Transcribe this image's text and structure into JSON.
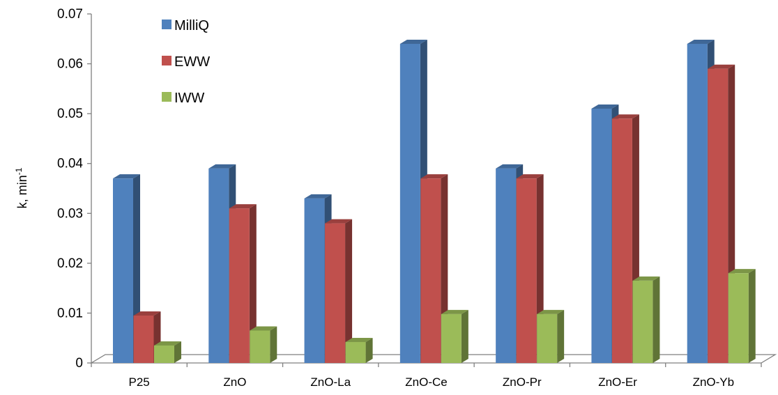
{
  "chart_data": {
    "type": "bar",
    "categories": [
      "P25",
      "ZnO",
      "ZnO-La",
      "ZnO-Ce",
      "ZnO-Pr",
      "ZnO-Er",
      "ZnO-Yb"
    ],
    "series": [
      {
        "name": "MilliQ",
        "color": "#4F81BD",
        "values": [
          0.037,
          0.039,
          0.033,
          0.064,
          0.039,
          0.051,
          0.064
        ]
      },
      {
        "name": "EWW",
        "color": "#C0504D",
        "values": [
          0.0095,
          0.031,
          0.028,
          0.037,
          0.037,
          0.049,
          0.059
        ]
      },
      {
        "name": "IWW",
        "color": "#9BBB59",
        "values": [
          0.0035,
          0.0065,
          0.0042,
          0.0098,
          0.0098,
          0.0165,
          0.018
        ]
      }
    ],
    "ylabel": "k, min",
    "ylabel_superscript": "-1",
    "ylim": [
      0,
      0.07
    ],
    "yticks": [
      "0",
      "0.01",
      "0.02",
      "0.03",
      "0.04",
      "0.05",
      "0.06",
      "0.07"
    ],
    "grid": false,
    "legend_position": "top-left",
    "style": "3d-column"
  }
}
